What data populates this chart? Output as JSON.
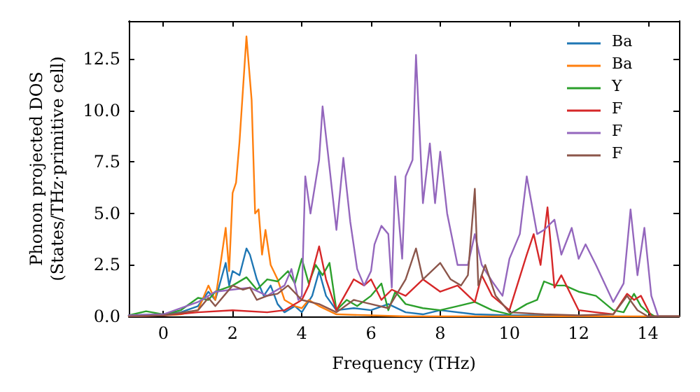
{
  "chart_data": {
    "type": "line",
    "xlabel": "Frequency (THz)",
    "ylabel": "Phonon projected DOS\n(States/THz·primitive cell)",
    "xlim": [
      -1,
      14.9
    ],
    "xticks": [
      0,
      2,
      4,
      6,
      8,
      10,
      12,
      14
    ],
    "ylim": [
      0,
      14.35
    ],
    "yticks": [
      {
        "value": 0,
        "label": "0.0"
      },
      {
        "value": 2.5,
        "label": "2.5"
      },
      {
        "value": 5,
        "label": "5.0"
      },
      {
        "value": 7.5,
        "label": "7.5"
      },
      {
        "value": 10,
        "label": "10.0"
      },
      {
        "value": 12.5,
        "label": "12.5"
      }
    ],
    "grid": false,
    "legend": "top right",
    "marker": "none",
    "line_style": "solid",
    "series": [
      {
        "name": "Ba",
        "color": "#1f77b4",
        "x": [
          -1,
          0,
          0.5,
          1,
          1.3,
          1.5,
          1.8,
          1.9,
          2,
          2.2,
          2.4,
          2.5,
          2.7,
          2.9,
          3.1,
          3.3,
          3.5,
          3.8,
          4,
          4.3,
          4.5,
          4.7,
          5,
          5.5,
          6,
          6.5,
          7,
          7.5,
          8,
          9,
          10,
          11,
          12
        ],
        "values": [
          0.05,
          0.1,
          0.2,
          0.5,
          1.2,
          0.8,
          2.6,
          1.5,
          2.2,
          2,
          3.3,
          3,
          1.8,
          1,
          1.5,
          0.6,
          0.2,
          0.5,
          0.2,
          1,
          2.2,
          1,
          0.3,
          0.4,
          0.3,
          0.6,
          0.2,
          0.1,
          0.3,
          0.1,
          0.05,
          0.05,
          0
        ]
      },
      {
        "name": "Ba",
        "color": "#ff7f0e",
        "x": [
          -1,
          0,
          0.5,
          1,
          1.3,
          1.5,
          1.8,
          1.9,
          2,
          2.1,
          2.2,
          2.4,
          2.55,
          2.65,
          2.75,
          2.85,
          2.95,
          3.1,
          3.3,
          3.5,
          3.8,
          4,
          4.2,
          4.5,
          5,
          6,
          7,
          8,
          10,
          12,
          14,
          14.9
        ],
        "values": [
          0.02,
          0.05,
          0.1,
          0.3,
          1.5,
          0.8,
          4.3,
          2.2,
          6,
          6.5,
          8.5,
          13.6,
          10.5,
          5,
          5.2,
          3,
          4.2,
          2.5,
          1.8,
          0.8,
          0.5,
          0.4,
          0.8,
          0.5,
          0.1,
          0.05,
          0,
          0,
          0,
          0,
          0,
          0
        ]
      },
      {
        "name": "Y",
        "color": "#2ca02c",
        "x": [
          -1,
          -0.5,
          0,
          0.5,
          1,
          1.3,
          1.5,
          2,
          2.4,
          2.7,
          3,
          3.3,
          3.6,
          3.8,
          4,
          4.2,
          4.4,
          4.6,
          4.8,
          5,
          5.3,
          5.6,
          6,
          6.3,
          6.5,
          6.7,
          7,
          7.5,
          8,
          8.5,
          9,
          9.5,
          10,
          10.5,
          10.8,
          11,
          11.3,
          11.6,
          12,
          12.5,
          13,
          13.3,
          13.6,
          13.8,
          14,
          14.2,
          14.9
        ],
        "values": [
          0.05,
          0.25,
          0.1,
          0.3,
          0.9,
          0.8,
          1.2,
          1.5,
          1.9,
          1.3,
          1.8,
          1.7,
          2.2,
          1.6,
          2.8,
          1.6,
          2.5,
          2,
          2.6,
          0.3,
          0.8,
          0.5,
          1,
          1.6,
          0.3,
          1.2,
          0.6,
          0.4,
          0.3,
          0.5,
          0.7,
          0.3,
          0.1,
          0.6,
          0.8,
          1.7,
          1.5,
          1.5,
          1.2,
          1,
          0.3,
          0.2,
          1.1,
          0.5,
          0.2,
          0,
          0
        ]
      },
      {
        "name": "F",
        "color": "#d62728",
        "x": [
          -1,
          0,
          1,
          2,
          3,
          3.5,
          4,
          4.2,
          4.5,
          4.7,
          5,
          5.5,
          5.8,
          6,
          6.3,
          6.6,
          7,
          7.5,
          8,
          8.5,
          9,
          9.2,
          9.5,
          10,
          10.5,
          10.7,
          10.9,
          11.1,
          11.3,
          11.5,
          12,
          12.5,
          13,
          13.4,
          13.6,
          13.8,
          14.1,
          14.9
        ],
        "values": [
          0,
          0.05,
          0.2,
          0.3,
          0.2,
          0.3,
          0.8,
          1.5,
          3.4,
          1.8,
          0.3,
          1.8,
          1.5,
          1.8,
          0.8,
          1.3,
          1,
          1.8,
          1.2,
          1.5,
          0.7,
          2,
          1,
          0.3,
          3,
          4,
          2.5,
          5.3,
          1.4,
          2,
          0.3,
          0.2,
          0.1,
          1.1,
          0.8,
          1,
          0,
          0
        ]
      },
      {
        "name": "F",
        "color": "#9467bd",
        "x": [
          -1,
          0,
          1,
          1.5,
          2,
          2.5,
          3,
          3.5,
          3.7,
          3.9,
          4,
          4.1,
          4.25,
          4.5,
          4.6,
          4.75,
          5,
          5.2,
          5.4,
          5.6,
          5.8,
          6,
          6.1,
          6.3,
          6.5,
          6.6,
          6.7,
          6.9,
          7,
          7.2,
          7.3,
          7.5,
          7.7,
          7.85,
          8,
          8.2,
          8.5,
          8.8,
          9,
          9.2,
          9.5,
          9.8,
          10,
          10.3,
          10.5,
          10.8,
          11,
          11.3,
          11.5,
          11.8,
          12,
          12.2,
          12.5,
          13,
          13.3,
          13.5,
          13.7,
          13.9,
          14.1,
          14.3,
          14.9
        ],
        "values": [
          0.05,
          0.1,
          0.7,
          1.2,
          1.3,
          1.4,
          1,
          1.5,
          2.3,
          0.8,
          1,
          6.8,
          5,
          7.6,
          10.2,
          8,
          4.2,
          7.7,
          4.6,
          2.3,
          1.5,
          2.2,
          3.5,
          4.4,
          4,
          1.4,
          6.8,
          2.8,
          6.8,
          7.6,
          12.7,
          5.5,
          8.4,
          5.5,
          8,
          5,
          2.5,
          2.5,
          4,
          2.5,
          1.7,
          1,
          2.8,
          4,
          6.8,
          4,
          4.2,
          4.7,
          3,
          4.3,
          2.8,
          3.5,
          2.5,
          0.7,
          1.6,
          5.2,
          2,
          4.3,
          1,
          0,
          0
        ]
      },
      {
        "name": "F",
        "color": "#8c564b",
        "x": [
          -1,
          0,
          1,
          1.3,
          1.5,
          2,
          2.3,
          2.5,
          2.7,
          3,
          3.3,
          3.6,
          4,
          4.5,
          5,
          5.5,
          6,
          6.5,
          7,
          7.3,
          7.5,
          8,
          8.3,
          8.6,
          8.8,
          9,
          9.1,
          9.3,
          9.6,
          10,
          11,
          12,
          13,
          13.4,
          13.7,
          14,
          14.9
        ],
        "values": [
          0,
          0.05,
          0.3,
          0.9,
          0.5,
          1.5,
          1.3,
          1.4,
          0.8,
          1,
          1.1,
          1.5,
          0.8,
          0.6,
          0.2,
          0.8,
          0.6,
          0.4,
          1.8,
          3.3,
          1.8,
          2.6,
          1.8,
          1.5,
          2,
          6.2,
          1.5,
          2.5,
          1,
          0.2,
          0.1,
          0.05,
          0.1,
          1,
          0.3,
          0,
          0
        ]
      }
    ]
  }
}
